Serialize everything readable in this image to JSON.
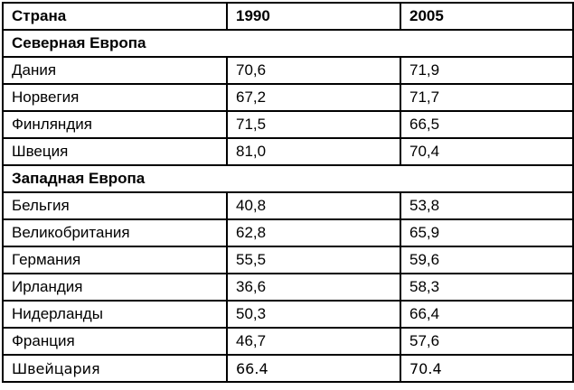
{
  "colors": {
    "border": "#000000",
    "background": "#ffffff",
    "text": "#000000"
  },
  "chart_data": {
    "type": "table",
    "columns": [
      "Страна",
      "1990",
      "2005"
    ],
    "sections": [
      {
        "title": "Северная Европа",
        "rows": [
          {
            "country": "Дания",
            "y1990": "70,6",
            "y2005": "71,9"
          },
          {
            "country": "Норвегия",
            "y1990": "67,2",
            "y2005": "71,7"
          },
          {
            "country": "Финляндия",
            "y1990": "71,5",
            "y2005": "66,5"
          },
          {
            "country": "Швеция",
            "y1990": "81,0",
            "y2005": "70,4"
          }
        ]
      },
      {
        "title": "Западная Европа",
        "rows": [
          {
            "country": "Бельгия",
            "y1990": "40,8",
            "y2005": "53,8"
          },
          {
            "country": "Великобритания",
            "y1990": "62,8",
            "y2005": "65,9"
          },
          {
            "country": "Германия",
            "y1990": "55,5",
            "y2005": "59,6"
          },
          {
            "country": "Ирландия",
            "y1990": "36,6",
            "y2005": "58,3"
          },
          {
            "country": "Нидерланды",
            "y1990": "50,3",
            "y2005": "66,4"
          },
          {
            "country": "Франция",
            "y1990": "46,7",
            "y2005": "57,6"
          },
          {
            "country": "Швейцария",
            "y1990": "66.4",
            "y2005": "70.4"
          }
        ]
      }
    ]
  }
}
